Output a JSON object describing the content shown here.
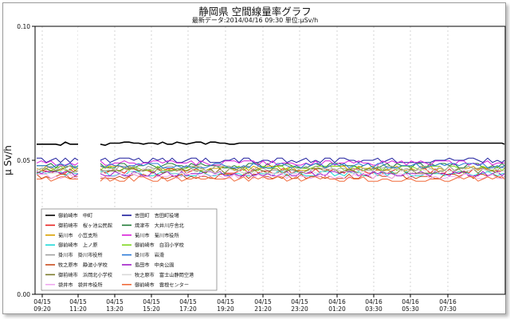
{
  "chart_data": {
    "type": "line",
    "title": "静岡県 空間線量率グラフ",
    "subtitle": "最新データ:2014/04/16 09:30  単位:μSv/h",
    "ylabel": "μ Sv/h",
    "xlabel": "",
    "ylim": [
      0.0,
      0.1
    ],
    "y_ticks": [
      "0.00",
      "0.05",
      "0.10"
    ],
    "x_ticks": [
      {
        "date": "04/15",
        "time": "09:20"
      },
      {
        "date": "04/15",
        "time": "11:20"
      },
      {
        "date": "04/15",
        "time": "13:20"
      },
      {
        "date": "04/15",
        "time": "15:20"
      },
      {
        "date": "04/15",
        "time": "17:20"
      },
      {
        "date": "04/15",
        "time": "19:20"
      },
      {
        "date": "04/15",
        "time": "21:20"
      },
      {
        "date": "04/15",
        "time": "23:20"
      },
      {
        "date": "04/16",
        "time": "01:20"
      },
      {
        "date": "04/16",
        "time": "03:30"
      },
      {
        "date": "04/16",
        "time": "05:30"
      },
      {
        "date": "04/16",
        "time": "07:30"
      }
    ],
    "grid": "vertical-dashed",
    "legend_placement": "bottom-left",
    "gap": [
      "04/15 11:20",
      "04/15 12:20"
    ],
    "series": [
      {
        "name": "御前崎市　中町",
        "color": "#000000",
        "level": 0.056
      },
      {
        "name": "吉田町　吉田町役場",
        "color": "#1a1a9c",
        "level": 0.05
      },
      {
        "name": "御前崎市　桜ヶ池公民館",
        "color": "#e8201e",
        "level": 0.046
      },
      {
        "name": "焼津市　大井川庁舎北",
        "color": "#1d7a35",
        "level": 0.048
      },
      {
        "name": "菊川市　小笠支所",
        "color": "#d9a000",
        "level": 0.047
      },
      {
        "name": "菊川市　菊川市役所",
        "color": "#d81fd8",
        "level": 0.049
      },
      {
        "name": "御前崎市　上ノ原",
        "color": "#1fd8d8",
        "level": 0.045
      },
      {
        "name": "御前崎市　白羽小学校",
        "color": "#7fd81f",
        "level": 0.047
      },
      {
        "name": "掛川市　掛川市役所",
        "color": "#a0a0a0",
        "level": 0.047
      },
      {
        "name": "掛川市　岩滑",
        "color": "#2a7ad8",
        "level": 0.048
      },
      {
        "name": "牧之原市　静波小学校",
        "color": "#c84a1a",
        "level": 0.044
      },
      {
        "name": "島田市　中央公園",
        "color": "#a01ac8",
        "level": 0.045
      },
      {
        "name": "御前崎市　浜岡北小学校",
        "color": "#7a7a2a",
        "level": 0.046
      },
      {
        "name": "牧之原市　富士山静岡空港",
        "color": "#d8d8d8",
        "level": 0.046
      },
      {
        "name": "袋井市　袋井市役所",
        "color": "#f0a8f0",
        "level": 0.044
      },
      {
        "name": "御前崎市　雲根センター",
        "color": "#f06a3a",
        "level": 0.043
      }
    ]
  }
}
